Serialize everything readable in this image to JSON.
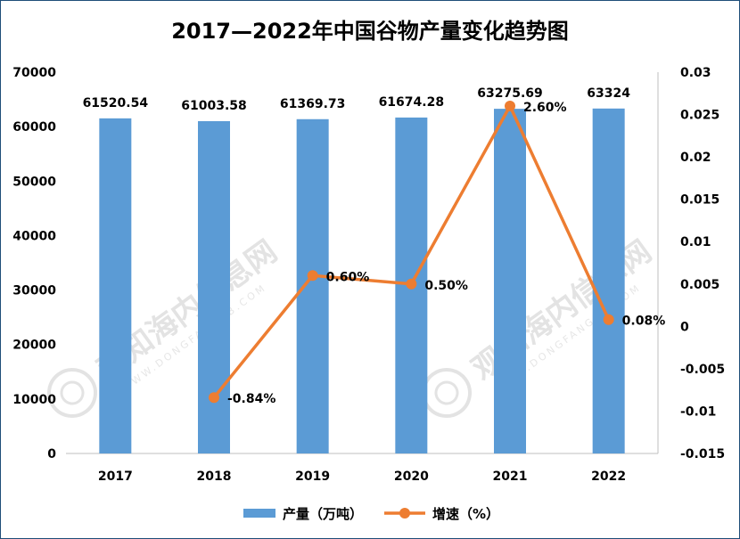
{
  "title": "2017—2022年中国谷物产量变化趋势图",
  "watermark": {
    "text": "观知海内信息网",
    "url": "WWW.DONGFANGQB.COM"
  },
  "colors": {
    "bar": "#5b9bd5",
    "line": "#ed7d31"
  },
  "chart_data": {
    "type": "bar",
    "categories": [
      "2017",
      "2018",
      "2019",
      "2020",
      "2021",
      "2022"
    ],
    "series": [
      {
        "name": "产量（万吨）",
        "type": "bar",
        "axis": "left",
        "values": [
          61520.54,
          61003.58,
          61369.73,
          61674.28,
          63275.69,
          63324
        ],
        "labels": [
          "61520.54",
          "61003.58",
          "61369.73",
          "61674.28",
          "63275.69",
          "63324"
        ]
      },
      {
        "name": "增速（%）",
        "type": "line",
        "axis": "right",
        "values": [
          -0.0084,
          0.006,
          0.005,
          0.026,
          0.0008
        ],
        "x": [
          "2018",
          "2019",
          "2020",
          "2021",
          "2022"
        ],
        "labels": [
          "-0.84%",
          "0.60%",
          "0.50%",
          "2.60%",
          "0.08%"
        ]
      }
    ],
    "y_left": {
      "lim": [
        0,
        70000
      ],
      "ticks": [
        "0",
        "10000",
        "20000",
        "30000",
        "40000",
        "50000",
        "60000",
        "70000"
      ]
    },
    "y_right": {
      "lim": [
        -0.015,
        0.03
      ],
      "ticks": [
        "0.03",
        "0.025",
        "0.02",
        "0.015",
        "0.01",
        "0.005",
        "0",
        "-0.005",
        "-0.01",
        "-0.015"
      ]
    },
    "legend": "bottom",
    "grid": false
  }
}
